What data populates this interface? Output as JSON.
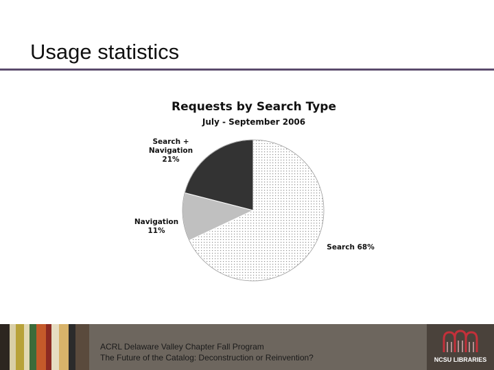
{
  "slide": {
    "title": "Usage statistics"
  },
  "chart_data": {
    "type": "pie",
    "title": "Requests by Search Type",
    "subtitle": "July - September 2006",
    "slices": [
      {
        "label": "Search",
        "value": 68,
        "fill": "dots"
      },
      {
        "label": "Navigation",
        "value": 11,
        "fill": "#c0c0c0"
      },
      {
        "label": "Search + Navigation",
        "value": 21,
        "fill": "#333333"
      }
    ],
    "labels": {
      "search": "Search 68%",
      "nav_line1": "Navigation",
      "nav_line2": "11%",
      "combo_line1": "Search +",
      "combo_line2": "Navigation",
      "combo_line3": "21%"
    }
  },
  "footer": {
    "line1": "ACRL Delaware Valley Chapter Fall Program",
    "line2": "The Future of the Catalog: Deconstruction or Reinvention?",
    "logo_text": "NCSU LIBRARIES",
    "colors": {
      "band": "#6d665e",
      "logo_red": "#c4303a",
      "logo_bg": "#4a423b"
    }
  }
}
